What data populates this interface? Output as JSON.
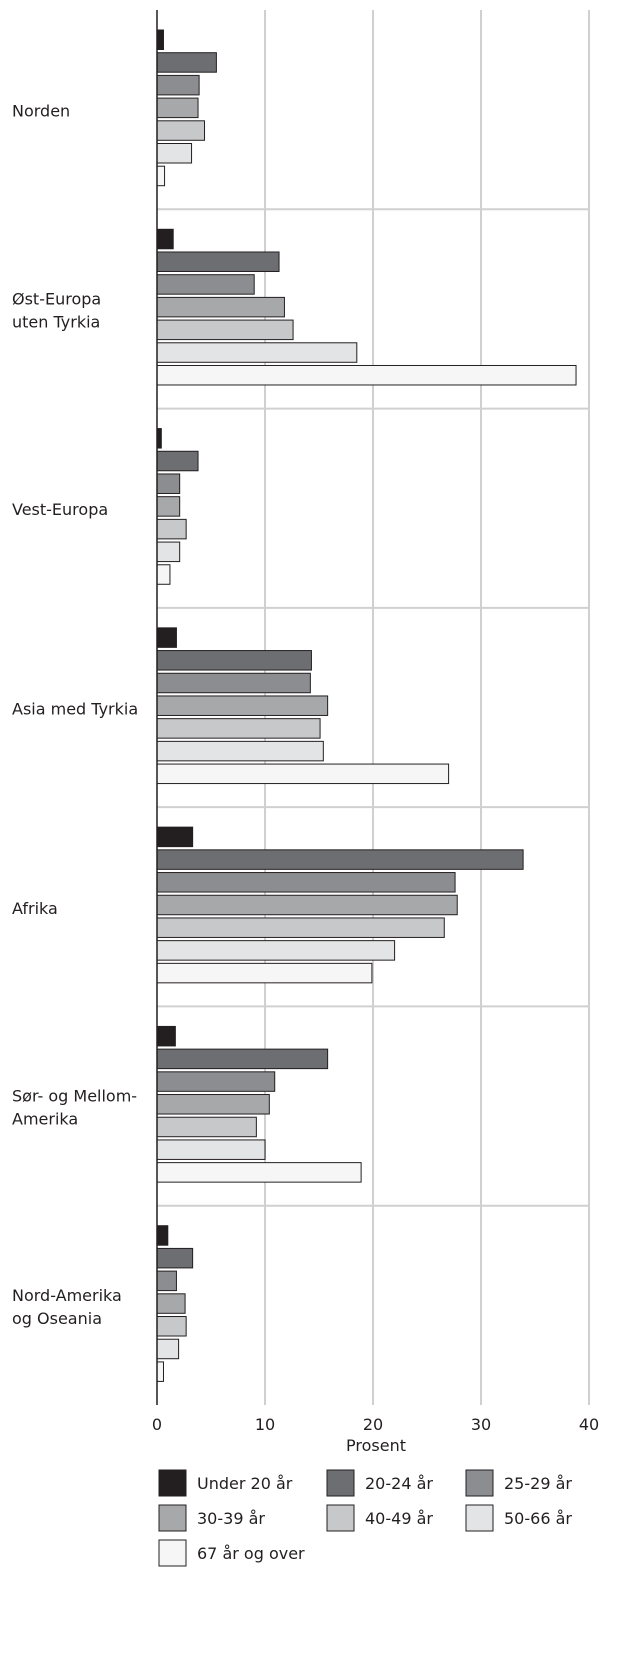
{
  "chart_data": {
    "type": "bar",
    "orientation": "horizontal",
    "xlabel": "Prosent",
    "xlim": [
      0,
      40
    ],
    "xticks": [
      0,
      10,
      20,
      30,
      40
    ],
    "grid": true,
    "legend_position": "bottom",
    "categories": [
      [
        "Norden"
      ],
      [
        "Øst-Europa",
        "uten Tyrkia"
      ],
      [
        "Vest-Europa"
      ],
      [
        "Asia med Tyrkia"
      ],
      [
        "Afrika"
      ],
      [
        "Sør- og Mellom-",
        "Amerika"
      ],
      [
        "Nord-Amerika",
        "og Oseania"
      ]
    ],
    "series": [
      {
        "name": "Under 20 år",
        "color": "#231f20",
        "values": [
          0.6,
          1.5,
          0.4,
          1.8,
          3.3,
          1.7,
          1.0
        ]
      },
      {
        "name": "20-24 år",
        "color": "#6d6e71",
        "values": [
          5.5,
          11.3,
          3.8,
          14.3,
          33.9,
          15.8,
          3.3
        ]
      },
      {
        "name": "25-29 år",
        "color": "#8c8d90",
        "values": [
          3.9,
          9.0,
          2.1,
          14.2,
          27.6,
          10.9,
          1.8
        ]
      },
      {
        "name": "30-39 år",
        "color": "#a7a8aa",
        "values": [
          3.8,
          11.8,
          2.1,
          15.8,
          27.8,
          10.4,
          2.6
        ]
      },
      {
        "name": "40-49 år",
        "color": "#c7c8ca",
        "values": [
          4.4,
          12.6,
          2.7,
          15.1,
          26.6,
          9.2,
          2.7
        ]
      },
      {
        "name": "50-66 år",
        "color": "#e3e4e5",
        "values": [
          3.2,
          18.5,
          2.1,
          15.4,
          22.0,
          10.0,
          2.0
        ]
      },
      {
        "name": "67 år og over",
        "color": "#f6f6f6",
        "values": [
          0.7,
          38.8,
          1.2,
          27.0,
          19.9,
          18.9,
          0.6
        ]
      }
    ]
  }
}
